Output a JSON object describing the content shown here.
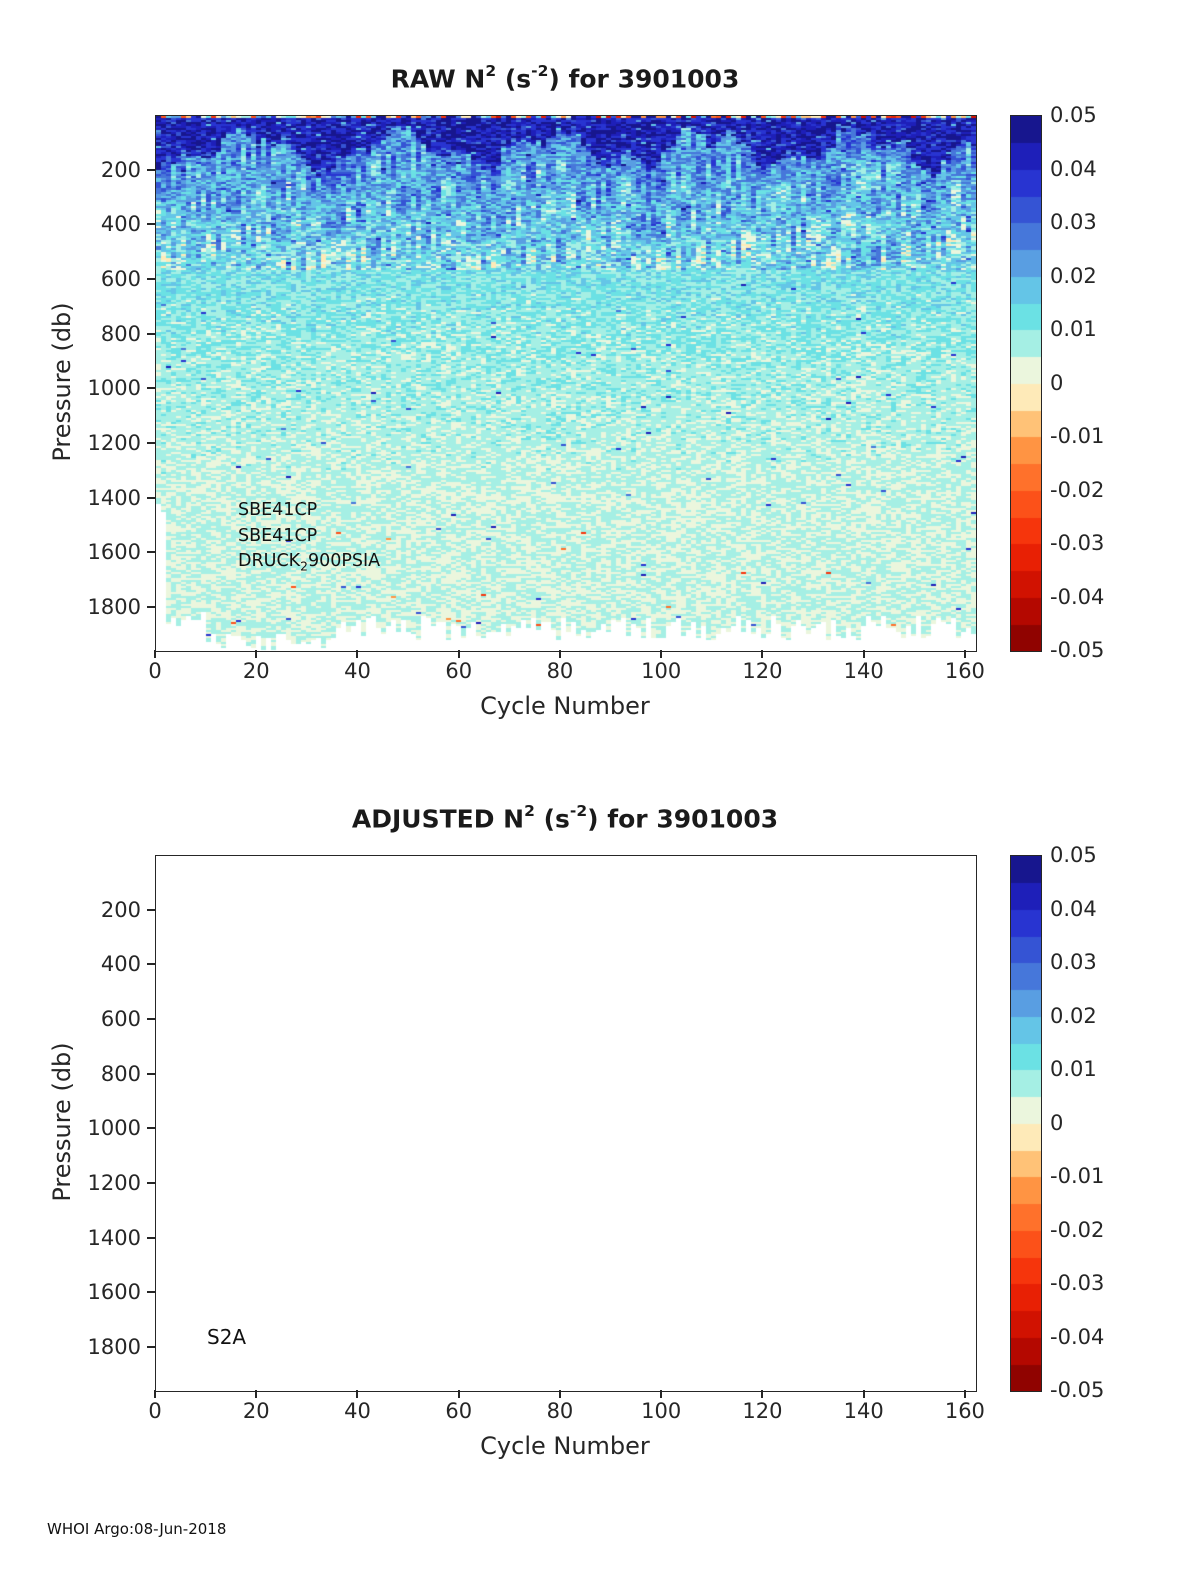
{
  "page": {
    "footer": "WHOI Argo:08-Jun-2018"
  },
  "colorbar": {
    "tick_labels": [
      "0.05",
      "0.04",
      "0.03",
      "0.02",
      "0.01",
      "0",
      "-0.01",
      "-0.02",
      "-0.03",
      "-0.04",
      "-0.05"
    ]
  },
  "colormap": {
    "min": -0.05,
    "max": 0.05,
    "levels": 20,
    "stops": [
      [
        -0.05,
        "#7e0000"
      ],
      [
        -0.04,
        "#c60b00"
      ],
      [
        -0.03,
        "#f32706"
      ],
      [
        -0.02,
        "#ff5f1f"
      ],
      [
        -0.01,
        "#ffa64f"
      ],
      [
        -0.005,
        "#fede9e"
      ],
      [
        0,
        "#fdf5d2"
      ],
      [
        0.005,
        "#d9f6e8"
      ],
      [
        0.01,
        "#70e8e0"
      ],
      [
        0.015,
        "#66d9e8"
      ],
      [
        0.02,
        "#62b1e6"
      ],
      [
        0.03,
        "#3c64d6"
      ],
      [
        0.04,
        "#2224cf"
      ],
      [
        0.05,
        "#131178"
      ]
    ]
  },
  "charts": [
    {
      "id": "raw",
      "title_segments": [
        {
          "t": "RAW N"
        },
        {
          "sup": "2"
        },
        {
          "t": " (s"
        },
        {
          "sup": "-2"
        },
        {
          "t": ") for 3901003"
        }
      ],
      "xlabel": "Cycle Number",
      "ylabel": "Pressure (db)",
      "x_tick_labels": [
        "0",
        "20",
        "40",
        "60",
        "80",
        "100",
        "120",
        "140",
        "160"
      ],
      "y_tick_labels": [
        "200",
        "400",
        "600",
        "800",
        "1000",
        "1200",
        "1400",
        "1600",
        "1800"
      ],
      "annotations": [
        [
          {
            "t": "SBE41CP"
          }
        ],
        [
          {
            "t": "SBE41CP"
          }
        ],
        [
          {
            "t": "DRUCK"
          },
          {
            "sub": "2"
          },
          {
            "t": "900PSIA"
          }
        ]
      ]
    },
    {
      "id": "adjusted",
      "title_segments": [
        {
          "t": "ADJUSTED N"
        },
        {
          "sup": "2"
        },
        {
          "t": " (s"
        },
        {
          "sup": "-2"
        },
        {
          "t": ") for 3901003"
        }
      ],
      "xlabel": "Cycle Number",
      "ylabel": "Pressure (db)",
      "x_tick_labels": [
        "0",
        "20",
        "40",
        "60",
        "80",
        "100",
        "120",
        "140",
        "160"
      ],
      "y_tick_labels": [
        "200",
        "400",
        "600",
        "800",
        "1000",
        "1200",
        "1400",
        "1600",
        "1800"
      ],
      "annotations": [
        [
          {
            "t": "S2A"
          }
        ]
      ]
    }
  ],
  "chart_data": [
    {
      "type": "heatmap",
      "title": "RAW N^2 (s^-2) for 3901003",
      "xlabel": "Cycle Number",
      "ylabel": "Pressure (db)",
      "x_range": [
        0,
        162
      ],
      "y_range": [
        0,
        1958
      ],
      "y_inverted": true,
      "colorbar_range": [
        -0.05,
        0.05
      ],
      "colorbar_tick_step": 0.01,
      "legend_position": "right-colorbar",
      "grid": false,
      "description": "Buoyancy frequency squared field from an Argo float. Strong stratification (N^2 ~ 0.04-0.05 s^-2, dark navy) in a wavy band over roughly 15-200 db; patchy moderate values (0.012-0.035 s^-2, blue) from ~200-560 db; weak values (0.003-0.012 s^-2, pale cyan) below 600 db with scattered near-zero cream specks; rare negative (orange/red) specks at the very surface and near the deepest samples. Profiles terminate (white) near 1840-1950 db, slightly shallower for the earliest cycles.",
      "depth_bands": [
        {
          "range_db": [
            0,
            12
          ],
          "mean": 0.0,
          "noise": 0.04,
          "note": "mixed tan/red/blue surface specks"
        },
        {
          "range_db": [
            12,
            "wavy 60-200"
          ],
          "mean": 0.043,
          "noise": 0.009,
          "note": "dark navy pycnocline band"
        },
        {
          "range_db": [
            "band bottom",
            560
          ],
          "mean_top": 0.024,
          "mean_bottom": 0.012,
          "noise": 0.0095,
          "patch_amp": 0.009
        },
        {
          "range_db": [
            560,
            900
          ],
          "mean_top": 0.012,
          "mean_bottom": 0.008,
          "noise": 0.006
        },
        {
          "range_db": [
            900,
            1400
          ],
          "mean_top": 0.008,
          "mean_bottom": 0.005,
          "noise": 0.0045
        },
        {
          "range_db": [
            1400,
            1958
          ],
          "mean": 0.005,
          "noise": 0.004
        }
      ],
      "max_depth_db": {
        "early_cycles": 1820,
        "mid_cycles": 1950,
        "late_cycles": 1870
      },
      "annotations": [
        "SBE41CP",
        "SBE41CP",
        "DRUCK_2 900PSIA"
      ]
    },
    {
      "type": "heatmap",
      "title": "ADJUSTED N^2 (s^-2) for 3901003",
      "xlabel": "Cycle Number",
      "ylabel": "Pressure (db)",
      "x_range": [
        0,
        162
      ],
      "y_range": [
        0,
        1958
      ],
      "y_inverted": true,
      "colorbar_range": [
        -0.05,
        0.05
      ],
      "values": [],
      "note": "no adjusted data plotted (blank axes)",
      "annotations": [
        "S2A"
      ]
    }
  ]
}
